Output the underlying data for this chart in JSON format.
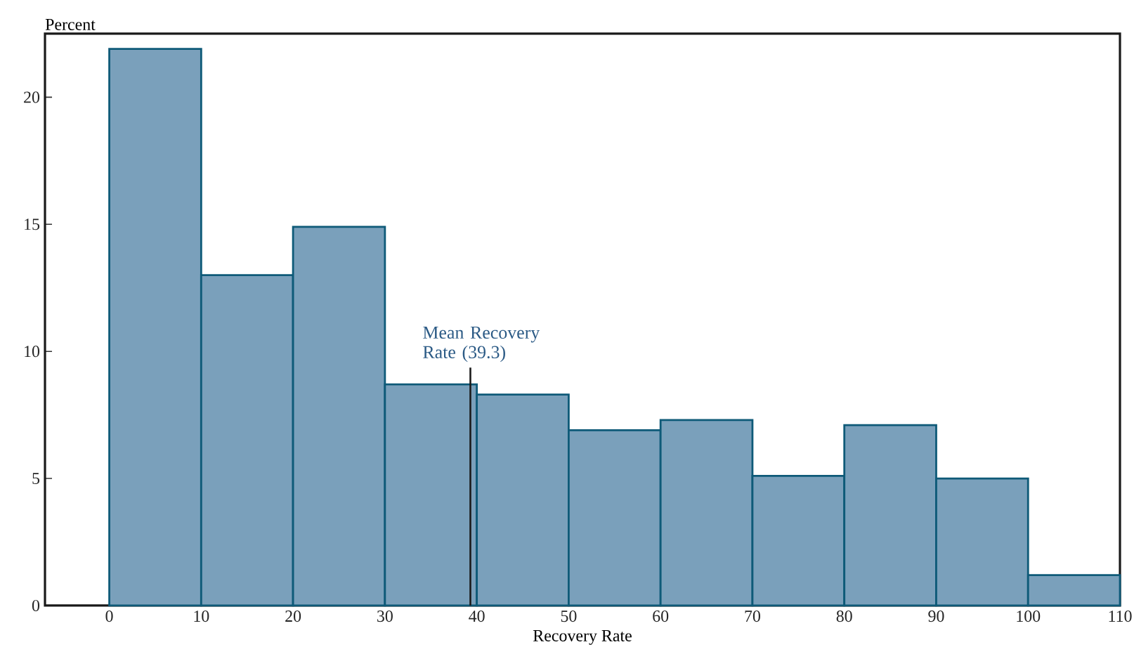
{
  "chart_data": {
    "type": "histogram",
    "xlabel": "Recovery Rate",
    "ylabel": "Percent",
    "bins": [
      0,
      10,
      20,
      30,
      40,
      50,
      60,
      70,
      80,
      90,
      100,
      110
    ],
    "values": [
      21.9,
      13.0,
      14.9,
      8.7,
      8.3,
      6.9,
      7.3,
      5.1,
      7.1,
      5.0,
      1.2
    ],
    "color": "#7aa0bb",
    "xlim": [
      -7,
      110
    ],
    "ylim": [
      0,
      22.5
    ],
    "xticks": [
      0,
      10,
      20,
      30,
      40,
      50,
      60,
      70,
      80,
      90,
      100,
      110
    ],
    "yticks": [
      0,
      5,
      10,
      15,
      20
    ],
    "ref_lines": [
      {
        "axis": "x",
        "value": 39.3,
        "label": "Mean Recovery Rate (39.3)",
        "color": "#1a1a1a"
      }
    ]
  }
}
